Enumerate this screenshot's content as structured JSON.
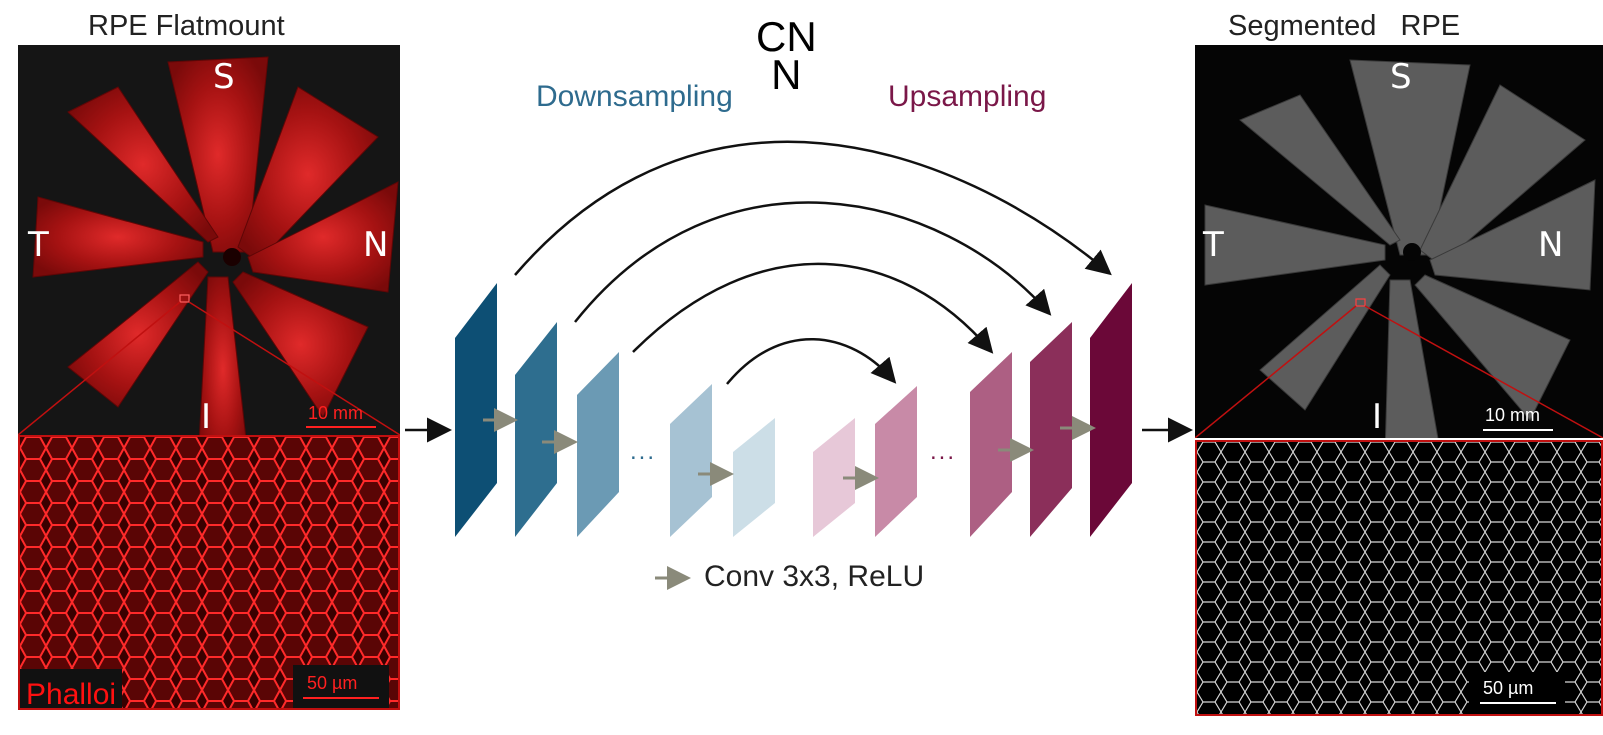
{
  "left": {
    "title": "RPE Flatmount",
    "orientation": {
      "top": "S",
      "left": "T",
      "right": "N",
      "bottom": "I"
    },
    "scale_large": "10 mm",
    "scale_small": "50 µm",
    "stain_label": "Phalloi",
    "colors": {
      "tissue": "#b01515",
      "zoom_box": "#d01010"
    }
  },
  "network": {
    "title": "CN\nN",
    "title_line1": "CN",
    "title_line2": "N",
    "down_label": "Downsampling",
    "up_label": "Upsampling",
    "ellipsis_left": "...",
    "ellipsis_right": "...",
    "legend": "Conv 3x3, ReLU",
    "colors": {
      "down": [
        "#0d4f74",
        "#2e6e8f",
        "#6b9ab4",
        "#a6c2d3",
        "#ccdee7"
      ],
      "up": [
        "#e7c8d8",
        "#c88aa7",
        "#ad5f83",
        "#8b2f5a",
        "#6b0838"
      ],
      "down_text": "#2e6b8e",
      "up_text": "#7a1748"
    }
  },
  "right": {
    "title": "Segmented   RPE",
    "orientation": {
      "top": "S",
      "left": "T",
      "right": "N",
      "bottom": "I"
    },
    "scale_large": "10 mm",
    "scale_small": "50 µm",
    "colors": {
      "tissue": "#5a5a5a",
      "zoom_box": "#c01010"
    }
  }
}
